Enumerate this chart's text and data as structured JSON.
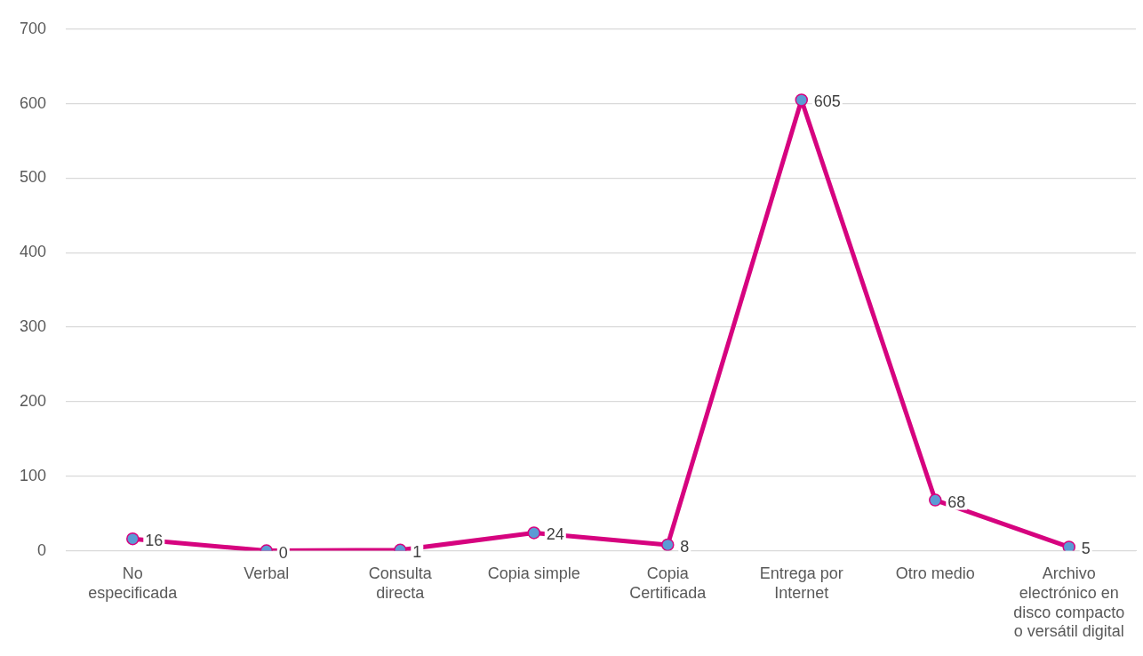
{
  "chart_data": {
    "type": "line",
    "categories": [
      "No especificada",
      "Verbal",
      "Consulta directa",
      "Copia simple",
      "Copia Certificada",
      "Entrega por Internet",
      "Otro medio",
      "Archivo electrónico en disco compacto o versátil digital"
    ],
    "series": [
      {
        "color": "#d6037f",
        "values": [
          16,
          0,
          1,
          24,
          8,
          605,
          68,
          5
        ]
      }
    ],
    "marker": "circle",
    "ylim": [
      0,
      700
    ],
    "yticks": [
      0,
      100,
      200,
      300,
      400,
      500,
      600,
      700
    ],
    "grid": "y",
    "legend": false,
    "data_labels": true
  }
}
